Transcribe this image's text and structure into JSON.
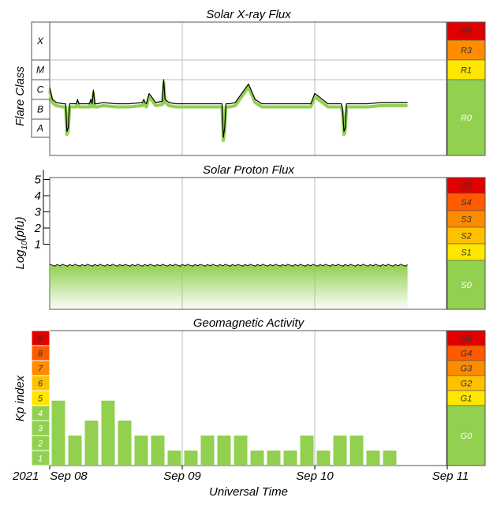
{
  "colors": {
    "green": "#92d050",
    "green_dark": "#6aa84f",
    "yellow": "#ffe600",
    "yellow_orange": "#ffc000",
    "orange": "#ff8c00",
    "orange_red": "#ff5a00",
    "red": "#e00000",
    "grid": "#bdbdbd",
    "frame": "#555555"
  },
  "chart_data": [
    {
      "type": "line",
      "title": "Solar X-ray Flux",
      "ylabel": "Flare Class",
      "y_scale": "log",
      "ylim": [
        "A",
        "X"
      ],
      "y_ticks": [
        "A",
        "B",
        "C",
        "M",
        "X"
      ],
      "xlim": [
        "Sep 08",
        "Sep 11"
      ],
      "x_ticks": [
        "Sep 08",
        "Sep 09",
        "Sep 10",
        "Sep 11"
      ],
      "series": [
        {
          "x_days": [
            0.0,
            0.02,
            0.05,
            0.1,
            0.12,
            0.13,
            0.14,
            0.15,
            0.2,
            0.21,
            0.22,
            0.3,
            0.31,
            0.32,
            0.33,
            0.34,
            0.36,
            0.4,
            0.5,
            0.6,
            0.7,
            0.71,
            0.72,
            0.73,
            0.75,
            0.8,
            0.85,
            0.86,
            0.87,
            0.9,
            0.95,
            0.96,
            0.97,
            1.0,
            1.1,
            1.2,
            1.3,
            1.31,
            1.32,
            1.33,
            1.34,
            1.36,
            1.4,
            1.5,
            1.55,
            1.6,
            1.7,
            1.8,
            1.9,
            1.95,
            1.96,
            1.97,
            2.0,
            2.1,
            2.2,
            2.21,
            2.22,
            2.23,
            2.24,
            2.3,
            2.4,
            2.5,
            2.6,
            2.7
          ],
          "flare_class": [
            "C4",
            "C1",
            "B7",
            "B6",
            "B6",
            "A2",
            "A3",
            "B6",
            "B6",
            "C1",
            "B6",
            "B6",
            "C1",
            "B6",
            "C3",
            "B6",
            "B6",
            "B7",
            "B6",
            "B6",
            "B7",
            "C1",
            "B7",
            "B6",
            "C2",
            "B7",
            "B8",
            "M1",
            "C1",
            "B7",
            "B6",
            "B6",
            "B6",
            "B6",
            "B6",
            "B6",
            "B6",
            "A1",
            "A3",
            "B6",
            "B6",
            "B6",
            "B7",
            "C6",
            "C1",
            "B6",
            "B6",
            "B6",
            "B6",
            "B6",
            "B6",
            "B6",
            "C2",
            "B6",
            "B6",
            "B3",
            "A2",
            "A3",
            "B6",
            "B6",
            "B6",
            "B7",
            "B7",
            "B7"
          ]
        }
      ],
      "scale_bar": [
        {
          "label": "R5",
          "color": "#e00000"
        },
        {
          "label": "R3",
          "color": "#ff8c00"
        },
        {
          "label": "R1",
          "color": "#ffe600"
        },
        {
          "label": "R0",
          "color": "#92d050"
        }
      ]
    },
    {
      "type": "area",
      "title": "Solar Proton Flux",
      "ylabel": "Log10(pfu)",
      "ylim": [
        -1.5,
        6
      ],
      "y_ticks": [
        1,
        2,
        3,
        4,
        5
      ],
      "xlim": [
        "Sep 08",
        "Sep 11"
      ],
      "series": [
        {
          "x_days": [
            0.0,
            2.7
          ],
          "log10_pfu": [
            -0.3,
            -0.3
          ]
        }
      ],
      "scale_bar": [
        {
          "label": "S5",
          "color": "#e00000"
        },
        {
          "label": "S4",
          "color": "#ff5a00"
        },
        {
          "label": "S3",
          "color": "#ff8c00"
        },
        {
          "label": "S2",
          "color": "#ffc000"
        },
        {
          "label": "S1",
          "color": "#ffe600"
        },
        {
          "label": "S0",
          "color": "#92d050"
        }
      ]
    },
    {
      "type": "bar",
      "title": "Geomagnetic Activity",
      "ylabel": "Kp index",
      "ylim": [
        0,
        9
      ],
      "y_ticks": [
        "1",
        "2",
        "3",
        "4",
        "5",
        "6",
        "7",
        "8",
        "9"
      ],
      "xlabel": "Universal Time",
      "x_ticks": [
        "Sep 08",
        "Sep 09",
        "Sep 10",
        "Sep 11"
      ],
      "x_year": "2021",
      "kp_3hour": [
        4.33,
        2.0,
        3.0,
        4.33,
        3.0,
        2.0,
        2.0,
        1.0,
        1.0,
        2.0,
        2.0,
        2.0,
        1.0,
        1.0,
        1.0,
        2.0,
        1.0,
        2.0,
        2.0,
        1.0,
        1.0
      ],
      "scale_bar": [
        {
          "label": "G5",
          "color": "#e00000"
        },
        {
          "label": "G4",
          "color": "#ff5a00"
        },
        {
          "label": "G3",
          "color": "#ff8c00"
        },
        {
          "label": "G2",
          "color": "#ffc000"
        },
        {
          "label": "G1",
          "color": "#ffe600"
        },
        {
          "label": "G0",
          "color": "#92d050"
        }
      ],
      "kp_colors": [
        "#92d050",
        "#92d050",
        "#92d050",
        "#92d050",
        "#ffe600",
        "#ffc000",
        "#ff8c00",
        "#ff5a00",
        "#e00000"
      ]
    }
  ]
}
